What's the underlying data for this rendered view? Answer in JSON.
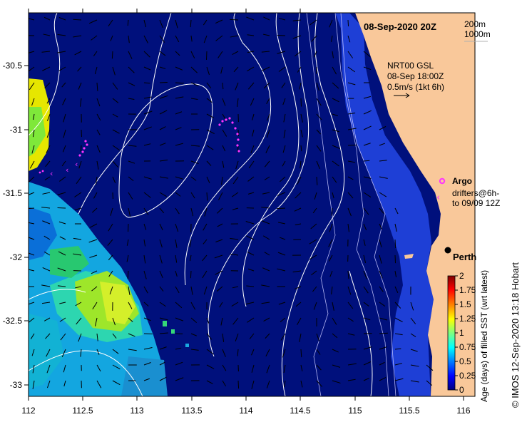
{
  "title": "08-Sep-2020 20Z",
  "depth_legend": [
    "200m",
    "1000m"
  ],
  "current_info": [
    "NRT00 GSL",
    "08-Sep 18:00Z",
    "0.5m/s (1kt 6h)"
  ],
  "legend": {
    "argo": "Argo",
    "drifters": [
      "drifters@6h-",
      "to 09/09 12Z"
    ]
  },
  "city": "Perth",
  "colorbar": {
    "label": "Age (days) of filled SST (wrt latest)",
    "ticks": [
      "0",
      "0.25",
      "0.5",
      "0.75",
      "1",
      "1.25",
      "1.5",
      "1.75",
      "2"
    ],
    "colors": [
      "#00007f",
      "#0000ff",
      "#007fff",
      "#00ffff",
      "#7fff7f",
      "#ffff00",
      "#ff7f00",
      "#ff0000",
      "#7f0000"
    ]
  },
  "credit": "© IMOS 12-Sep-2020 13:18 Hobart",
  "axes": {
    "x_ticks": [
      "112",
      "112.5",
      "113",
      "113.5",
      "114",
      "114.5",
      "115",
      "115.5",
      "116"
    ],
    "y_ticks": [
      "-30.5",
      "-31",
      "-31.5",
      "-32",
      "-32.5",
      "-33"
    ]
  },
  "colors": {
    "ocean": "#00107c",
    "land": "#f9c89a",
    "shelf": "#1e3fd6",
    "argo": "#ff33ff",
    "drifter": "#ff33ff",
    "contour": "#ffffff"
  }
}
